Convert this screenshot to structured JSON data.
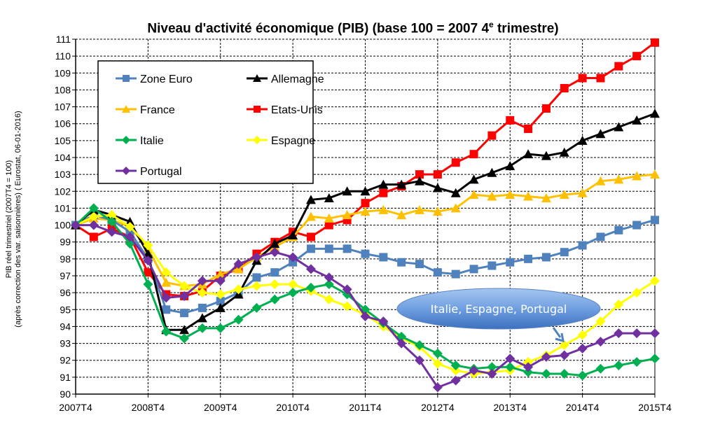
{
  "chart_data": {
    "type": "line",
    "title": "Niveau d'activité économique (PIB)  (base 100 = 2007 4",
    "title_sup": "e",
    "title_end": " trimestre)",
    "ylabel": "PIB réel trimestriel (2007T4 = 100)",
    "ylabel2": "(après correction des var. saisonnières) ( Eurostat, 06-01-2016)",
    "ylim": [
      90,
      111
    ],
    "yticks": [
      90,
      91,
      92,
      93,
      94,
      95,
      96,
      97,
      98,
      99,
      100,
      101,
      102,
      103,
      104,
      105,
      106,
      107,
      108,
      109,
      110,
      111
    ],
    "xtick_labels": [
      "2007T4",
      "2008T4",
      "2009T4",
      "2010T4",
      "2011T4",
      "2012T4",
      "2013T4",
      "2014T4",
      "2015T4"
    ],
    "x_quarters": 33,
    "grid": true,
    "legend_placement": "top-left",
    "annotation": "Italie, Espagne, Portugal",
    "series": [
      {
        "name": "Zone Euro",
        "color": "#4F81BD",
        "marker": "square",
        "values": [
          100,
          100.6,
          100.3,
          99.6,
          98.0,
          95.0,
          94.8,
          95.1,
          95.5,
          96.0,
          96.9,
          97.2,
          97.8,
          98.6,
          98.6,
          98.6,
          98.3,
          98.1,
          97.8,
          97.7,
          97.2,
          97.1,
          97.4,
          97.6,
          97.8,
          98.0,
          98.1,
          98.4,
          98.8,
          99.3,
          99.7,
          100.0,
          100.3
        ]
      },
      {
        "name": "Allemagne",
        "color": "#000000",
        "marker": "triangle",
        "values": [
          100,
          100.9,
          100.6,
          100.2,
          98.3,
          93.8,
          93.8,
          94.5,
          95.1,
          95.9,
          97.9,
          98.9,
          99.4,
          101.5,
          101.6,
          102.0,
          102.0,
          102.4,
          102.4,
          102.6,
          102.2,
          101.9,
          102.7,
          103.1,
          103.5,
          104.2,
          104.1,
          104.3,
          105.0,
          105.4,
          105.8,
          106.2,
          106.6
        ]
      },
      {
        "name": "France",
        "color": "#FFC000",
        "marker": "triangle",
        "values": [
          100,
          100.4,
          100.3,
          99.9,
          98.6,
          96.6,
          96.4,
          96.5,
          97.1,
          97.4,
          98.1,
          98.7,
          99.3,
          100.5,
          100.4,
          100.6,
          100.8,
          100.9,
          100.6,
          100.9,
          100.8,
          101.0,
          101.8,
          101.7,
          101.8,
          101.7,
          101.6,
          101.8,
          101.9,
          102.6,
          102.7,
          102.9,
          103.0
        ]
      },
      {
        "name": "Etats-Unis",
        "color": "#FF0000",
        "marker": "square",
        "values": [
          100,
          99.3,
          99.8,
          99.3,
          97.2,
          95.9,
          95.8,
          96.1,
          97.0,
          97.4,
          98.3,
          99.0,
          99.6,
          99.3,
          100.0,
          100.3,
          101.3,
          101.9,
          102.3,
          103.0,
          103.0,
          103.7,
          104.2,
          105.3,
          106.2,
          105.7,
          106.9,
          108.1,
          108.7,
          108.7,
          109.4,
          110.0,
          110.8
        ]
      },
      {
        "name": "Italie",
        "color": "#00B050",
        "marker": "diamond",
        "values": [
          100,
          101.0,
          100.2,
          98.9,
          96.5,
          93.7,
          93.3,
          93.9,
          93.9,
          94.4,
          95.1,
          95.6,
          96.0,
          96.3,
          96.5,
          95.9,
          95.0,
          94.2,
          93.4,
          92.9,
          92.4,
          91.7,
          91.5,
          91.6,
          91.6,
          91.3,
          91.2,
          91.2,
          91.1,
          91.5,
          91.7,
          91.9,
          92.1
        ]
      },
      {
        "name": "Espagne",
        "color": "#FFFF00",
        "marker": "diamond",
        "values": [
          100,
          100.5,
          100.6,
          99.9,
          98.8,
          97.2,
          96.4,
          96.0,
          95.9,
          96.2,
          96.4,
          96.5,
          96.5,
          96.1,
          95.6,
          95.2,
          94.7,
          94.0,
          93.3,
          92.8,
          91.8,
          91.4,
          91.2,
          91.3,
          91.4,
          91.9,
          92.3,
          92.9,
          93.5,
          94.3,
          95.3,
          96.0,
          96.7
        ]
      },
      {
        "name": "Portugal",
        "color": "#7030A0",
        "marker": "diamond",
        "values": [
          100,
          100.0,
          99.6,
          99.3,
          97.9,
          95.7,
          95.8,
          96.7,
          96.7,
          97.7,
          98.1,
          98.4,
          98.1,
          97.4,
          96.9,
          96.2,
          94.6,
          94.3,
          93.0,
          92.0,
          90.4,
          90.8,
          91.4,
          91.2,
          92.1,
          91.6,
          92.2,
          92.3,
          92.7,
          93.1,
          93.6,
          93.6,
          93.6
        ]
      }
    ]
  }
}
